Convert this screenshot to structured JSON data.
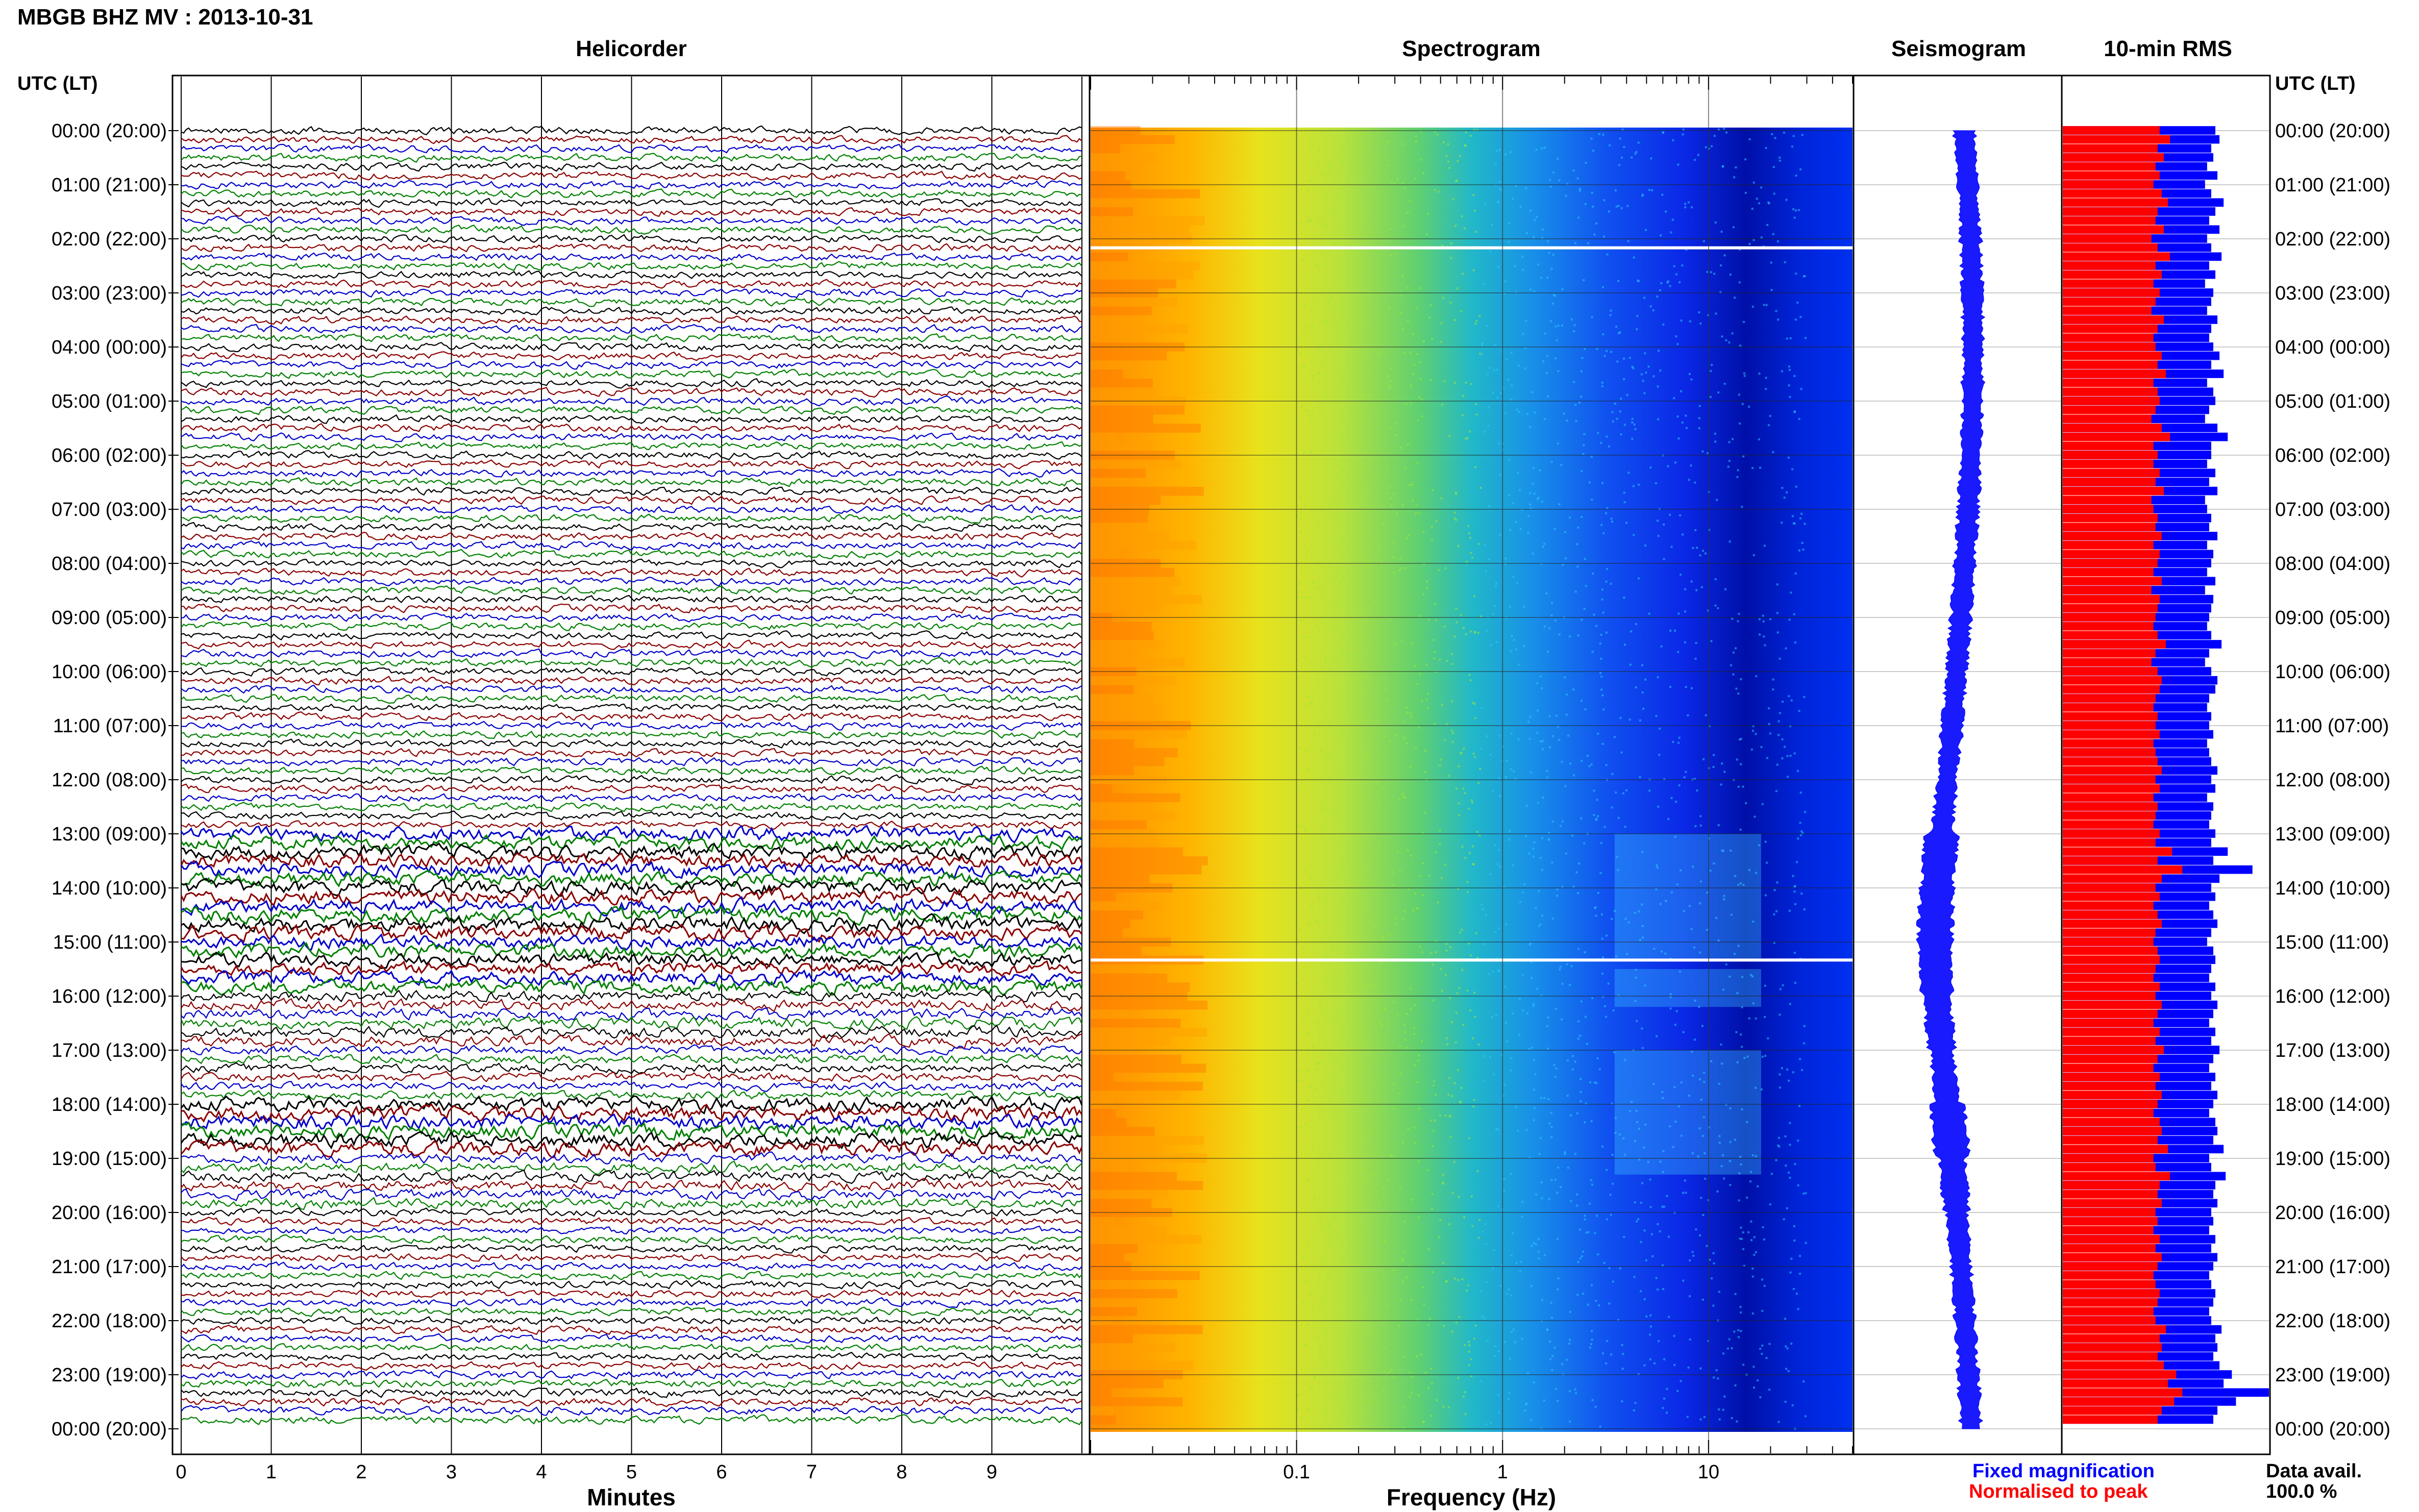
{
  "station_title": "MBGB BHZ MV : 2013-10-31",
  "headers": {
    "helicorder": "Helicorder",
    "spectrogram": "Spectrogram",
    "seismogram": "Seismogram",
    "rms": "10-min RMS",
    "utc_left": "UTC (LT)",
    "utc_right": "UTC (LT)"
  },
  "time_labels": [
    "00:00 (20:00)",
    "01:00 (21:00)",
    "02:00 (22:00)",
    "03:00 (23:00)",
    "04:00 (00:00)",
    "05:00 (01:00)",
    "06:00 (02:00)",
    "07:00 (03:00)",
    "08:00 (04:00)",
    "09:00 (05:00)",
    "10:00 (06:00)",
    "11:00 (07:00)",
    "12:00 (08:00)",
    "13:00 (09:00)",
    "14:00 (10:00)",
    "15:00 (11:00)",
    "16:00 (12:00)",
    "17:00 (13:00)",
    "18:00 (14:00)",
    "19:00 (15:00)",
    "20:00 (16:00)",
    "21:00 (17:00)",
    "22:00 (18:00)",
    "23:00 (19:00)",
    "00:00 (20:00)"
  ],
  "footer": {
    "fixed_magnification": "Fixed magnification",
    "normalised_to_peak": "Normalised to peak",
    "data_avail_label": "Data avail.",
    "data_avail_value": "100.0 %"
  },
  "colors": {
    "fixed_magnification": "#0000ff",
    "normalised_to_peak": "#ff0000",
    "helicorder_traces": [
      "#000000",
      "#8b0000",
      "#0000cc",
      "#008000"
    ]
  },
  "chart_data": [
    {
      "type": "line",
      "panel": "helicorder",
      "title": "Helicorder",
      "xlabel": "Minutes",
      "x_ticks": [
        "0",
        "1",
        "2",
        "3",
        "4",
        "5",
        "6",
        "7",
        "8",
        "9"
      ],
      "xlim": [
        0,
        10
      ],
      "rows_per_hour": 6,
      "row_count": 144,
      "relative_amplitude_by_hour": [
        1,
        1,
        1,
        1,
        1,
        1,
        1,
        1,
        1,
        1,
        1,
        1,
        1,
        1.9,
        2.0,
        1.8,
        1.5,
        1.2,
        2.0,
        1.4,
        1,
        1,
        1,
        1.1
      ]
    },
    {
      "type": "heatmap",
      "panel": "spectrogram",
      "title": "Spectrogram",
      "xlabel": "Frequency (Hz)",
      "x_scale": "log",
      "x_ticks": [
        "0.1",
        "1",
        "10"
      ],
      "xlim": [
        0.01,
        50
      ],
      "colormap": "jet",
      "gaps_utc": [
        "02:10",
        "15:20"
      ]
    },
    {
      "type": "line",
      "panel": "seismogram",
      "title": "Seismogram"
    },
    {
      "type": "bar",
      "panel": "rms",
      "title": "10-min RMS",
      "series": [
        {
          "name": "Fixed magnification",
          "color": "#0000ff"
        },
        {
          "name": "Normalised to peak",
          "color": "#ff0000"
        }
      ],
      "xlim": [
        0,
        1
      ],
      "red_fraction": [
        0.47,
        0.52,
        0.46,
        0.49,
        0.45,
        0.47,
        0.44,
        0.48,
        0.51,
        0.46,
        0.45,
        0.49,
        0.43,
        0.46,
        0.52,
        0.45,
        0.48,
        0.44,
        0.47,
        0.45,
        0.43,
        0.49,
        0.46,
        0.44,
        0.45,
        0.48,
        0.46,
        0.5,
        0.44,
        0.46,
        0.47,
        0.45,
        0.43,
        0.48,
        0.52,
        0.44,
        0.46,
        0.44,
        0.47,
        0.45,
        0.49,
        0.43,
        0.44,
        0.46,
        0.45,
        0.48,
        0.44,
        0.47,
        0.46,
        0.44,
        0.48,
        0.43,
        0.47,
        0.46,
        0.45,
        0.44,
        0.46,
        0.5,
        0.45,
        0.43,
        0.46,
        0.48,
        0.47,
        0.45,
        0.44,
        0.46,
        0.45,
        0.47,
        0.44,
        0.45,
        0.46,
        0.48,
        0.45,
        0.47,
        0.44,
        0.46,
        0.45,
        0.44,
        0.47,
        0.45,
        0.53,
        0.46,
        0.58,
        0.48,
        0.45,
        0.47,
        0.44,
        0.46,
        0.48,
        0.45,
        0.44,
        0.46,
        0.47,
        0.45,
        0.44,
        0.47,
        0.45,
        0.48,
        0.46,
        0.44,
        0.47,
        0.45,
        0.49,
        0.46,
        0.44,
        0.47,
        0.45,
        0.48,
        0.46,
        0.44,
        0.47,
        0.48,
        0.46,
        0.51,
        0.44,
        0.45,
        0.52,
        0.47,
        0.46,
        0.48,
        0.45,
        0.46,
        0.44,
        0.47,
        0.45,
        0.48,
        0.46,
        0.44,
        0.45,
        0.47,
        0.46,
        0.44,
        0.45,
        0.5,
        0.47,
        0.48,
        0.46,
        0.49,
        0.55,
        0.51,
        0.58,
        0.54,
        0.48,
        0.46
      ],
      "blue_fraction": [
        0.74,
        0.76,
        0.72,
        0.73,
        0.7,
        0.75,
        0.69,
        0.72,
        0.78,
        0.74,
        0.71,
        0.76,
        0.7,
        0.72,
        0.77,
        0.71,
        0.74,
        0.69,
        0.73,
        0.72,
        0.7,
        0.75,
        0.72,
        0.71,
        0.73,
        0.76,
        0.72,
        0.78,
        0.7,
        0.73,
        0.74,
        0.71,
        0.69,
        0.75,
        0.8,
        0.72,
        0.72,
        0.7,
        0.74,
        0.71,
        0.75,
        0.69,
        0.7,
        0.72,
        0.71,
        0.75,
        0.7,
        0.73,
        0.72,
        0.7,
        0.74,
        0.69,
        0.73,
        0.72,
        0.71,
        0.7,
        0.72,
        0.77,
        0.71,
        0.69,
        0.72,
        0.75,
        0.74,
        0.71,
        0.7,
        0.72,
        0.71,
        0.73,
        0.7,
        0.71,
        0.72,
        0.75,
        0.72,
        0.74,
        0.7,
        0.73,
        0.72,
        0.71,
        0.74,
        0.72,
        0.8,
        0.73,
        0.92,
        0.76,
        0.72,
        0.74,
        0.71,
        0.73,
        0.75,
        0.72,
        0.7,
        0.73,
        0.74,
        0.72,
        0.71,
        0.74,
        0.72,
        0.75,
        0.73,
        0.71,
        0.74,
        0.72,
        0.76,
        0.73,
        0.71,
        0.74,
        0.72,
        0.75,
        0.73,
        0.71,
        0.74,
        0.75,
        0.73,
        0.78,
        0.71,
        0.72,
        0.79,
        0.74,
        0.73,
        0.75,
        0.72,
        0.73,
        0.71,
        0.74,
        0.72,
        0.75,
        0.73,
        0.71,
        0.72,
        0.74,
        0.73,
        0.71,
        0.72,
        0.77,
        0.74,
        0.75,
        0.73,
        0.76,
        0.82,
        0.78,
        1.0,
        0.84,
        0.75,
        0.73
      ]
    }
  ]
}
